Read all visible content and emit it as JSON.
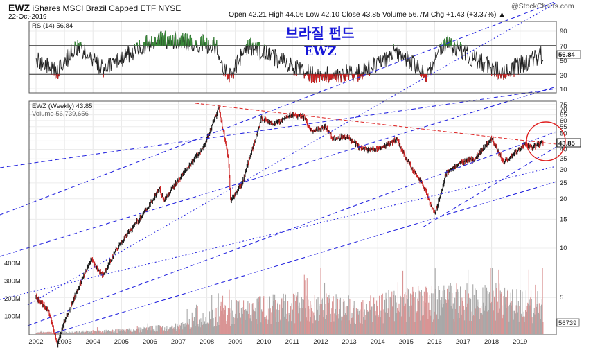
{
  "header": {
    "symbol": "EWZ",
    "name": "iShares MSCI Brazil Capped ETF",
    "exchange": "NYSE",
    "date": "22-Oct-2019",
    "quote": "Open 42.21  High 44.06  Low 42.10  Close 43.85  Volume 56.7M  Chg +1.43 (+3.37%) ▲",
    "brand": "@StockCharts.com"
  },
  "annotation": {
    "title_korean": "브라질 펀드",
    "title_ticker": "EWZ"
  },
  "rsi_panel": {
    "label": "RSI(14) 56.84",
    "current_value_label": "56.84",
    "ticks": [
      "90",
      "70",
      "50",
      "30",
      "10"
    ]
  },
  "price_panel": {
    "label": "EWZ (Weekly) 43.85",
    "volume_label": "Volume 56,739,656",
    "last_price_label": "43.85",
    "last_volume_label": "56739",
    "price_ticks": [
      "75",
      "70",
      "65",
      "60",
      "55",
      "50",
      "45",
      "40",
      "35",
      "30",
      "25",
      "20",
      "15",
      "10",
      "5"
    ],
    "volume_ticks": [
      "400M",
      "300M",
      "200M",
      "100M"
    ]
  },
  "colors": {
    "up": "#1a1a1a",
    "down": "#cc2222",
    "vol_up": "#a8a8a8",
    "vol_down": "#d99494",
    "trendline_blue": "#2a2ae0",
    "trendline_red": "#e03030",
    "title_blue": "#1717d8",
    "rsi_fill_high": "#3a8a3a",
    "rsi_fill_low": "#cc2222"
  },
  "chart_data": {
    "type": "candlestick",
    "title": "EWZ iShares MSCI Brazil Capped ETF NYSE",
    "x_axis_labels": [
      "2002",
      "2003",
      "2004",
      "2005",
      "2006",
      "2007",
      "2008",
      "2009",
      "2010",
      "2011",
      "2012",
      "2013",
      "2014",
      "2015",
      "2016",
      "2017",
      "2018",
      "2019"
    ],
    "y_scale": "log",
    "price_key_points": [
      {
        "date": "2002-01",
        "price": 5.0
      },
      {
        "date": "2002-06",
        "price": 4.2
      },
      {
        "date": "2002-10",
        "price": 2.6
      },
      {
        "date": "2003-01",
        "price": 3.6
      },
      {
        "date": "2003-12",
        "price": 8.5
      },
      {
        "date": "2004-05",
        "price": 6.8
      },
      {
        "date": "2004-12",
        "price": 10.5
      },
      {
        "date": "2005-12",
        "price": 17.5
      },
      {
        "date": "2006-05",
        "price": 23
      },
      {
        "date": "2006-07",
        "price": 19.5
      },
      {
        "date": "2006-12",
        "price": 25
      },
      {
        "date": "2007-12",
        "price": 42
      },
      {
        "date": "2008-06",
        "price": 72
      },
      {
        "date": "2008-10",
        "price": 36
      },
      {
        "date": "2008-11",
        "price": 19.5
      },
      {
        "date": "2009-04",
        "price": 25
      },
      {
        "date": "2009-12",
        "price": 62
      },
      {
        "date": "2010-06",
        "price": 57
      },
      {
        "date": "2010-12",
        "price": 65
      },
      {
        "date": "2011-06",
        "price": 63
      },
      {
        "date": "2011-09",
        "price": 52
      },
      {
        "date": "2012-03",
        "price": 55
      },
      {
        "date": "2012-06",
        "price": 47
      },
      {
        "date": "2012-12",
        "price": 48
      },
      {
        "date": "2013-06",
        "price": 40
      },
      {
        "date": "2014-02",
        "price": 40
      },
      {
        "date": "2014-09",
        "price": 46
      },
      {
        "date": "2015-01",
        "price": 35
      },
      {
        "date": "2015-09",
        "price": 23
      },
      {
        "date": "2016-01",
        "price": 16
      },
      {
        "date": "2016-06",
        "price": 29
      },
      {
        "date": "2016-12",
        "price": 33
      },
      {
        "date": "2017-06",
        "price": 35
      },
      {
        "date": "2018-01",
        "price": 47
      },
      {
        "date": "2018-06",
        "price": 33
      },
      {
        "date": "2018-12",
        "price": 39
      },
      {
        "date": "2019-03",
        "price": 43
      },
      {
        "date": "2019-06",
        "price": 41
      },
      {
        "date": "2019-10",
        "price": 43.85
      }
    ],
    "volume_level": [
      {
        "date": "2002-01",
        "volume_M": 8
      },
      {
        "date": "2005-01",
        "volume_M": 20
      },
      {
        "date": "2007-01",
        "volume_M": 45
      },
      {
        "date": "2008-06",
        "volume_M": 110
      },
      {
        "date": "2009-06",
        "volume_M": 150
      },
      {
        "date": "2011-06",
        "volume_M": 170
      },
      {
        "date": "2013-06",
        "volume_M": 150
      },
      {
        "date": "2015-06",
        "volume_M": 190
      },
      {
        "date": "2016-06",
        "volume_M": 200
      },
      {
        "date": "2018-06",
        "volume_M": 200
      },
      {
        "date": "2019-10",
        "volume_M": 160
      }
    ],
    "rsi_key_points": [
      {
        "date": "2002-01",
        "rsi": 50
      },
      {
        "date": "2002-10",
        "rsi": 33
      },
      {
        "date": "2003-06",
        "rsi": 70
      },
      {
        "date": "2004-05",
        "rsi": 38
      },
      {
        "date": "2006-04",
        "rsi": 80
      },
      {
        "date": "2008-05",
        "rsi": 70
      },
      {
        "date": "2008-10",
        "rsi": 22
      },
      {
        "date": "2009-06",
        "rsi": 70
      },
      {
        "date": "2011-09",
        "rsi": 30
      },
      {
        "date": "2013-06",
        "rsi": 32
      },
      {
        "date": "2014-09",
        "rsi": 62
      },
      {
        "date": "2015-09",
        "rsi": 30
      },
      {
        "date": "2016-06",
        "rsi": 72
      },
      {
        "date": "2018-06",
        "rsi": 32
      },
      {
        "date": "2019-10",
        "rsi": 56.84
      }
    ]
  }
}
